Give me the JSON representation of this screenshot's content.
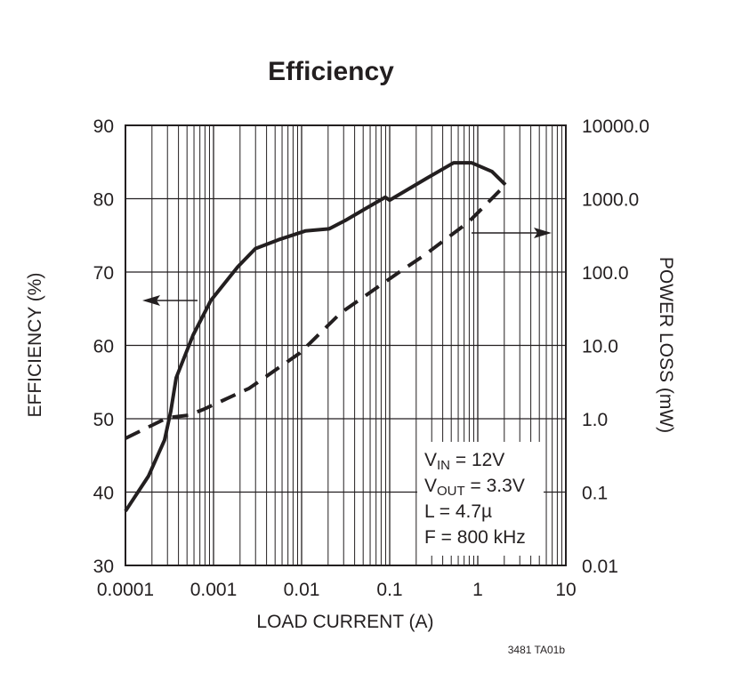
{
  "chart_data": {
    "type": "line",
    "title": "Efficiency",
    "xlabel": "LOAD CURRENT (A)",
    "ylabel": "EFFICIENCY (%)",
    "y2label": "POWER LOSS (mW)",
    "xscale": "log",
    "xlim": [
      0.0001,
      10
    ],
    "ylim": [
      30,
      90
    ],
    "y2scale": "log",
    "y2lim": [
      0.01,
      10000
    ],
    "grid": true,
    "x_ticks": [
      "0.0001",
      "0.001",
      "0.01",
      "0.1",
      "1",
      "10"
    ],
    "y_ticks": [
      "30",
      "40",
      "50",
      "60",
      "70",
      "80",
      "90"
    ],
    "y2_ticks": [
      "0.01",
      "0.1",
      "1.0",
      "10.0",
      "100.0",
      "1000.0",
      "10000.0"
    ],
    "series": [
      {
        "axis": "left",
        "style": "solid",
        "color": "#231f20",
        "x": [
          0.0001,
          0.000183,
          0.000278,
          0.000327,
          0.000377,
          0.000586,
          0.00093,
          0.00188,
          0.00299,
          0.00546,
          0.011,
          0.0206,
          0.031,
          0.056,
          0.089,
          0.1,
          0.265,
          0.533,
          0.85,
          1.45,
          2.06
        ],
        "y": [
          37.4,
          42.2,
          47.1,
          51.0,
          55.6,
          61.4,
          66.1,
          70.7,
          73.2,
          74.4,
          75.6,
          75.9,
          77.0,
          78.8,
          80.2,
          79.8,
          82.8,
          84.9,
          84.9,
          83.7,
          81.9
        ]
      },
      {
        "axis": "right",
        "style": "dashed",
        "color": "#231f20",
        "x": [
          0.0001,
          0.000298,
          0.00053,
          0.00079,
          0.00254,
          0.0096,
          0.0278,
          0.124,
          0.248,
          0.78,
          2.06
        ],
        "y": [
          0.54,
          1.03,
          1.12,
          1.36,
          2.6,
          7.9,
          27.7,
          97,
          170,
          477,
          1540
        ]
      }
    ],
    "annotations": [
      {
        "main": "V",
        "sub": "IN",
        "rest": " = 12V"
      },
      {
        "main": "V",
        "sub": "OUT",
        "rest": " = 3.3V"
      },
      {
        "main": "L = 4.7µ",
        "sub": "",
        "rest": ""
      },
      {
        "main": "F = 800 kHz",
        "sub": "",
        "rest": ""
      }
    ],
    "footnote": "3481 TA01b"
  }
}
